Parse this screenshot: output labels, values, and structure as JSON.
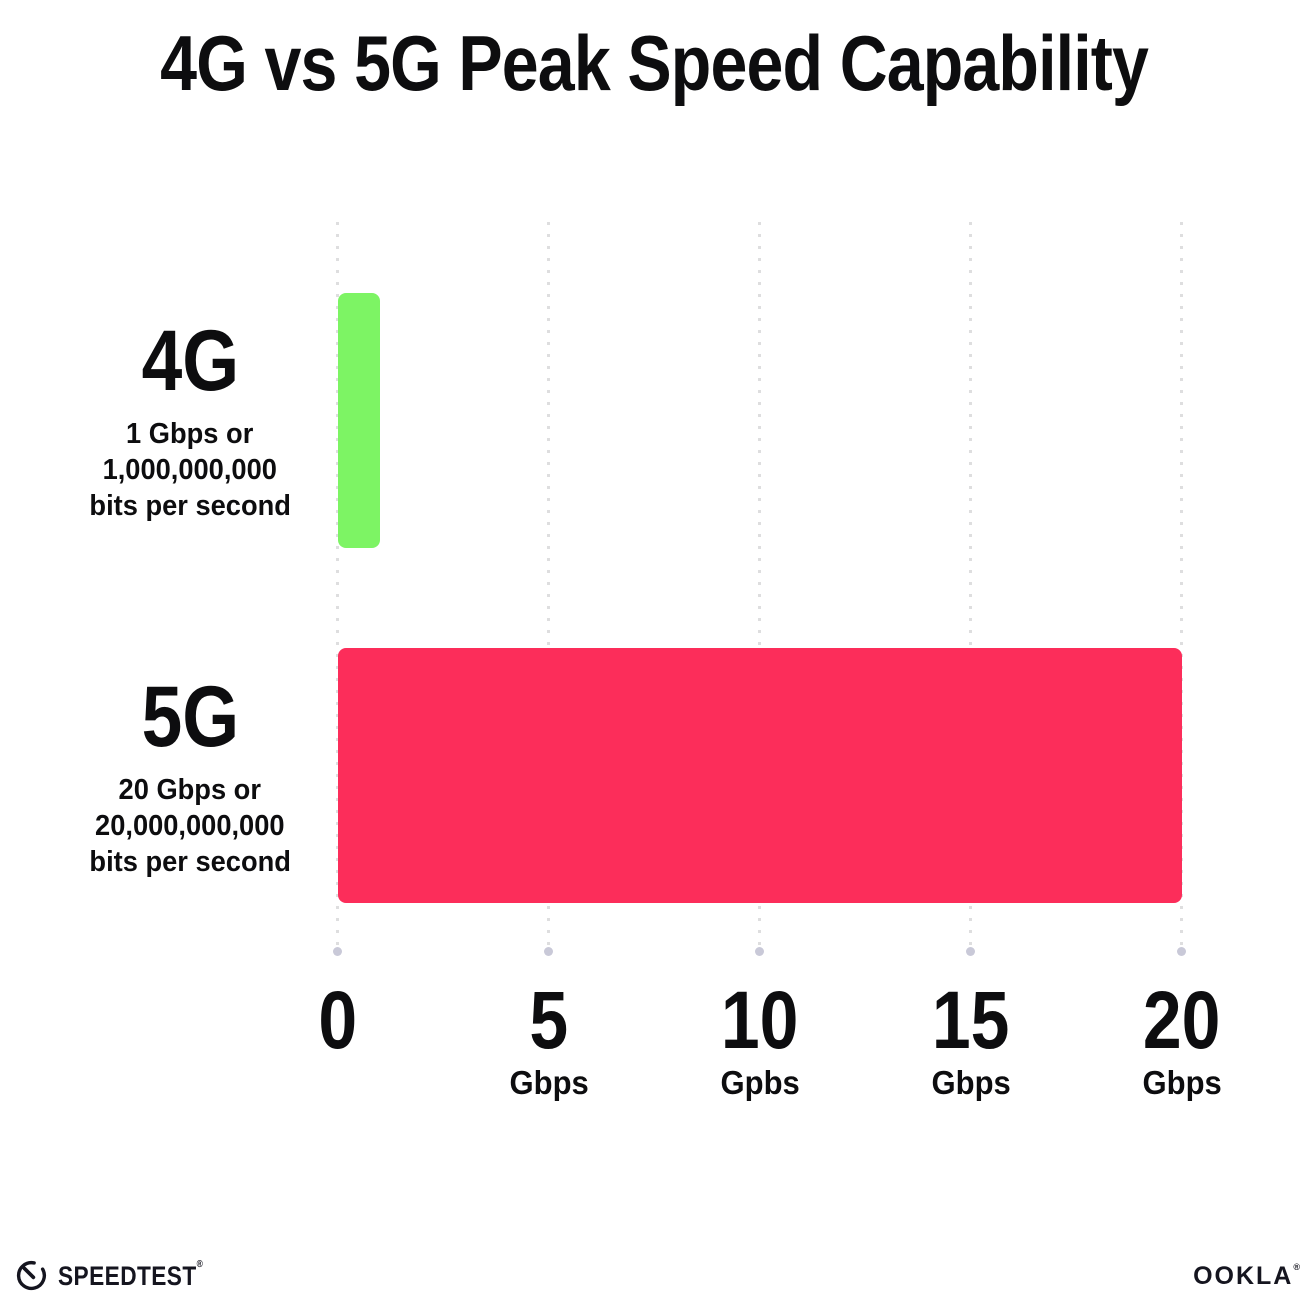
{
  "title": "4G vs 5G Peak Speed Capability",
  "chart_data": {
    "type": "bar",
    "orientation": "horizontal",
    "title": "4G vs 5G Peak Speed Capability",
    "categories": [
      "4G",
      "5G"
    ],
    "values": [
      1,
      20
    ],
    "value_unit": "Gbps",
    "xlim": [
      0,
      20
    ],
    "x_tick_values": [
      0,
      5,
      10,
      15,
      20
    ],
    "grid": "dotted-vertical",
    "bar_colors": [
      "#7df464",
      "#fc2d5a"
    ]
  },
  "rows": [
    {
      "label": "4G",
      "desc_lines": [
        "1 Gbps or",
        "1,000,000,000",
        "bits per second"
      ]
    },
    {
      "label": "5G",
      "desc_lines": [
        "20 Gbps or",
        "20,000,000,000",
        "bits per second"
      ]
    }
  ],
  "axis": {
    "ticks": [
      {
        "num": "0",
        "unit": ""
      },
      {
        "num": "5",
        "unit": "Gbps"
      },
      {
        "num": "10",
        "unit": "Gpbs"
      },
      {
        "num": "15",
        "unit": "Gbps"
      },
      {
        "num": "20",
        "unit": "Gbps"
      }
    ]
  },
  "footer": {
    "speedtest_label": "SPEEDTEST",
    "speedtest_mark": "®",
    "ookla_label": "OOKLA",
    "ookla_mark": "®"
  },
  "colors": {
    "bar_4g_green": "#7df464",
    "bar_5g_pink": "#fc2d5a",
    "text_black": "#0d0d0f",
    "gridline_dot": "#dededf",
    "gridline_end_dot": "#c9c9d8",
    "background": "#ffffff"
  }
}
